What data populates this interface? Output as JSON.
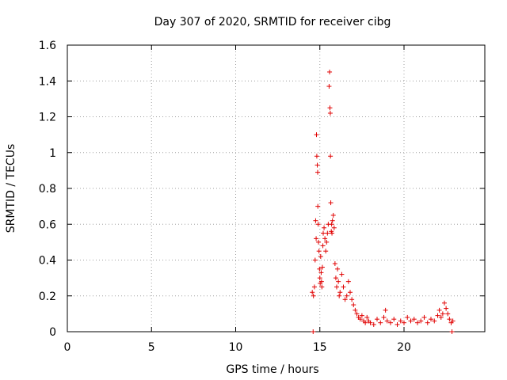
{
  "chart_data": {
    "type": "scatter",
    "title": "Day 307 of 2020, SRMTID for receiver cibg",
    "xlabel": "GPS time / hours",
    "ylabel": "SRMTID / TECUs",
    "xlim": [
      0,
      24.8
    ],
    "ylim": [
      0,
      1.6
    ],
    "grid": true,
    "marker": "+",
    "color": "#e00000",
    "xticks": [
      0,
      5,
      10,
      15,
      20
    ],
    "xtick_labels": [
      "0",
      "5",
      "10",
      "15",
      "20"
    ],
    "yticks": [
      0,
      0.2,
      0.4,
      0.6,
      0.8,
      1.0,
      1.2,
      1.4,
      1.6
    ],
    "ytick_labels": [
      "0",
      "0.2",
      "0.4",
      "0.6",
      "0.8",
      "1",
      "1.2",
      "1.4",
      "1.6"
    ],
    "series": [
      {
        "name": "SRMTID",
        "x": [
          14.55,
          14.62,
          14.68,
          14.72,
          14.75,
          14.78,
          14.8,
          14.82,
          14.85,
          14.87,
          14.88,
          14.9,
          14.92,
          14.95,
          14.98,
          15.0,
          15.02,
          15.05,
          15.08,
          15.1,
          15.12,
          15.15,
          15.18,
          15.2,
          15.25,
          15.3,
          15.35,
          15.4,
          15.45,
          15.5,
          15.55,
          15.58,
          15.6,
          15.62,
          15.63,
          15.65,
          15.68,
          15.7,
          15.72,
          15.75,
          15.8,
          15.85,
          15.9,
          15.95,
          16.0,
          16.05,
          16.1,
          16.15,
          16.2,
          16.3,
          16.4,
          16.5,
          16.6,
          16.7,
          16.8,
          16.9,
          17.0,
          17.1,
          17.2,
          17.3,
          17.4,
          17.5,
          17.6,
          17.7,
          17.8,
          17.9,
          18.0,
          18.2,
          18.4,
          18.6,
          18.8,
          18.9,
          19.0,
          19.2,
          19.4,
          19.6,
          19.8,
          20.0,
          20.2,
          20.4,
          20.6,
          20.8,
          21.0,
          21.2,
          21.4,
          21.6,
          21.8,
          22.0,
          22.1,
          22.2,
          22.3,
          22.4,
          22.5,
          22.6,
          22.7,
          22.8,
          22.9,
          14.6,
          22.85
        ],
        "y": [
          0.22,
          0.2,
          0.25,
          0.4,
          0.62,
          0.52,
          1.1,
          0.98,
          0.93,
          0.89,
          0.7,
          0.6,
          0.5,
          0.45,
          0.35,
          0.3,
          0.27,
          0.42,
          0.33,
          0.28,
          0.25,
          0.36,
          0.48,
          0.55,
          0.58,
          0.52,
          0.45,
          0.5,
          0.55,
          0.6,
          1.37,
          1.45,
          1.25,
          1.22,
          0.98,
          0.72,
          0.56,
          0.6,
          0.55,
          0.62,
          0.65,
          0.58,
          0.38,
          0.3,
          0.25,
          0.35,
          0.28,
          0.2,
          0.22,
          0.32,
          0.25,
          0.18,
          0.2,
          0.28,
          0.22,
          0.18,
          0.15,
          0.12,
          0.1,
          0.08,
          0.07,
          0.09,
          0.06,
          0.05,
          0.08,
          0.06,
          0.05,
          0.04,
          0.07,
          0.05,
          0.08,
          0.12,
          0.06,
          0.05,
          0.07,
          0.04,
          0.06,
          0.05,
          0.08,
          0.06,
          0.07,
          0.05,
          0.06,
          0.08,
          0.05,
          0.07,
          0.06,
          0.09,
          0.12,
          0.08,
          0.1,
          0.16,
          0.13,
          0.1,
          0.07,
          0.05,
          0.06,
          0.0,
          0.0
        ]
      }
    ]
  }
}
